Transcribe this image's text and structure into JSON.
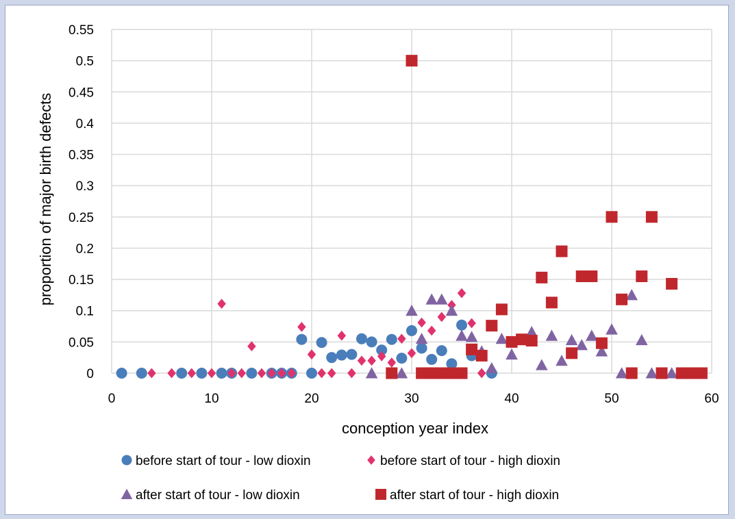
{
  "chart_data": {
    "type": "scatter",
    "title": "",
    "xlabel": "conception year index",
    "ylabel": "proportion of major birth defects",
    "xlim": [
      0,
      60
    ],
    "ylim": [
      0,
      0.55
    ],
    "x_ticks": [
      "0",
      "10",
      "20",
      "30",
      "40",
      "50",
      "60"
    ],
    "y_ticks": [
      "0",
      "0.05",
      "0.1",
      "0.15",
      "0.2",
      "0.25",
      "0.3",
      "0.35",
      "0.4",
      "0.45",
      "0.5",
      "0.55"
    ],
    "grid": true,
    "legend_position": "bottom",
    "series": [
      {
        "name": "before start of tour - low dioxin",
        "marker": "circle",
        "color": "#4a7ebb",
        "points": [
          [
            1,
            0
          ],
          [
            3,
            0
          ],
          [
            7,
            0
          ],
          [
            9,
            0
          ],
          [
            11,
            0
          ],
          [
            12,
            0
          ],
          [
            14,
            0
          ],
          [
            16,
            0
          ],
          [
            17,
            0
          ],
          [
            18,
            0
          ],
          [
            19,
            0.054
          ],
          [
            20,
            0
          ],
          [
            21,
            0.049
          ],
          [
            22,
            0.025
          ],
          [
            23,
            0.029
          ],
          [
            24,
            0.03
          ],
          [
            25,
            0.055
          ],
          [
            26,
            0.05
          ],
          [
            27,
            0.037
          ],
          [
            28,
            0.054
          ],
          [
            29,
            0.024
          ],
          [
            30,
            0.068
          ],
          [
            31,
            0.04
          ],
          [
            32,
            0.022
          ],
          [
            33,
            0.036
          ],
          [
            34,
            0.015
          ],
          [
            35,
            0.077
          ],
          [
            36,
            0.028
          ],
          [
            38,
            0
          ]
        ]
      },
      {
        "name": "before start of tour - high dioxin",
        "marker": "diamond",
        "color": "#e0336c",
        "points": [
          [
            4,
            0
          ],
          [
            6,
            0
          ],
          [
            8,
            0
          ],
          [
            10,
            0
          ],
          [
            11,
            0.111
          ],
          [
            12,
            0
          ],
          [
            13,
            0
          ],
          [
            14,
            0.043
          ],
          [
            15,
            0
          ],
          [
            16,
            0
          ],
          [
            17,
            0
          ],
          [
            18,
            0
          ],
          [
            19,
            0.074
          ],
          [
            20,
            0.03
          ],
          [
            21,
            0
          ],
          [
            22,
            0
          ],
          [
            23,
            0.06
          ],
          [
            24,
            0
          ],
          [
            25,
            0.02
          ],
          [
            26,
            0.02
          ],
          [
            27,
            0.027
          ],
          [
            28,
            0.017
          ],
          [
            29,
            0.055
          ],
          [
            30,
            0.032
          ],
          [
            31,
            0.081
          ],
          [
            32,
            0.068
          ],
          [
            33,
            0.09
          ],
          [
            34,
            0.109
          ],
          [
            35,
            0.128
          ],
          [
            36,
            0.08
          ],
          [
            37,
            0
          ]
        ]
      },
      {
        "name": "after start of tour - low dioxin",
        "marker": "triangle",
        "color": "#8064a2",
        "points": [
          [
            26,
            0
          ],
          [
            29,
            0
          ],
          [
            30,
            0.1
          ],
          [
            31,
            0.055
          ],
          [
            32,
            0.118
          ],
          [
            33,
            0.118
          ],
          [
            34,
            0.1
          ],
          [
            35,
            0.06
          ],
          [
            36,
            0.058
          ],
          [
            37,
            0.035
          ],
          [
            38,
            0.008
          ],
          [
            39,
            0.055
          ],
          [
            40,
            0.03
          ],
          [
            42,
            0.066
          ],
          [
            43,
            0.013
          ],
          [
            44,
            0.06
          ],
          [
            45,
            0.02
          ],
          [
            46,
            0.053
          ],
          [
            47,
            0.045
          ],
          [
            48,
            0.06
          ],
          [
            49,
            0.035
          ],
          [
            50,
            0.07
          ],
          [
            51,
            0
          ],
          [
            52,
            0.125
          ],
          [
            53,
            0.053
          ],
          [
            54,
            0
          ],
          [
            56,
            0
          ]
        ]
      },
      {
        "name": "after start of tour - high dioxin",
        "marker": "square",
        "color": "#c0272d",
        "points": [
          [
            28,
            0
          ],
          [
            30,
            0.5
          ],
          [
            31,
            0
          ],
          [
            32,
            0
          ],
          [
            33,
            0
          ],
          [
            34,
            0
          ],
          [
            35,
            0
          ],
          [
            36,
            0.038
          ],
          [
            37,
            0.028
          ],
          [
            38,
            0.076
          ],
          [
            39,
            0.102
          ],
          [
            40,
            0.05
          ],
          [
            41,
            0.054
          ],
          [
            42,
            0.052
          ],
          [
            43,
            0.153
          ],
          [
            44,
            0.113
          ],
          [
            45,
            0.195
          ],
          [
            46,
            0.032
          ],
          [
            47,
            0.155
          ],
          [
            48,
            0.155
          ],
          [
            49,
            0.048
          ],
          [
            50,
            0.25
          ],
          [
            51,
            0.118
          ],
          [
            52,
            0
          ],
          [
            53,
            0.155
          ],
          [
            54,
            0.25
          ],
          [
            55,
            0
          ],
          [
            56,
            0.143
          ],
          [
            57,
            0
          ],
          [
            58,
            0
          ],
          [
            59,
            0
          ]
        ]
      }
    ]
  }
}
